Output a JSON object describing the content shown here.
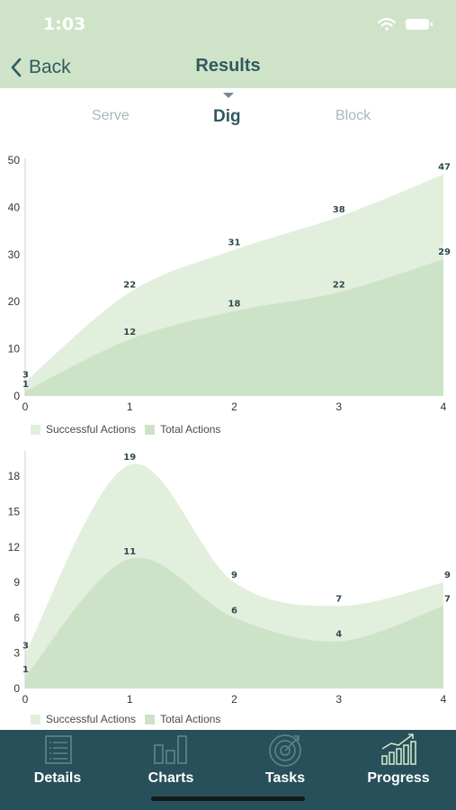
{
  "status_bar": {
    "time": "1:03"
  },
  "nav": {
    "back_label": "Back",
    "title": "Results"
  },
  "tabs": [
    {
      "label": "Serve",
      "active": false
    },
    {
      "label": "Dig",
      "active": true
    },
    {
      "label": "Block",
      "active": false
    }
  ],
  "colors": {
    "header": "#cfe3c8",
    "total_fill": "#e2efdd",
    "success_fill": "#cde3c7",
    "tabbar": "#27505a",
    "label": "#2f4a4e"
  },
  "chart_data": [
    {
      "type": "area",
      "x": [
        0,
        1,
        2,
        3,
        4
      ],
      "xlim": [
        0,
        4
      ],
      "ylim": [
        0,
        50
      ],
      "yticks": [
        0,
        10,
        20,
        30,
        40,
        50
      ],
      "series": [
        {
          "name": "Successful Actions",
          "values": [
            1,
            12,
            18,
            22,
            29
          ]
        },
        {
          "name": "Total Actions",
          "values": [
            3,
            22,
            31,
            38,
            47
          ]
        }
      ],
      "legend": [
        "Successful Actions",
        "Total Actions"
      ],
      "legend_position": "bottom-left"
    },
    {
      "type": "area",
      "x": [
        0,
        1,
        2,
        3,
        4
      ],
      "xlim": [
        0,
        4
      ],
      "ylim": [
        0,
        20
      ],
      "yticks": [
        0,
        3,
        6,
        9,
        12,
        15,
        18
      ],
      "series": [
        {
          "name": "Successful Actions",
          "values": [
            1,
            11,
            6,
            4,
            7
          ]
        },
        {
          "name": "Total Actions",
          "values": [
            3,
            19,
            9,
            7,
            9
          ]
        }
      ],
      "legend": [
        "Successful Actions",
        "Total Actions"
      ],
      "legend_position": "bottom-left"
    }
  ],
  "tabbar": [
    {
      "label": "Details",
      "icon": "list-icon"
    },
    {
      "label": "Charts",
      "icon": "bar-chart-icon"
    },
    {
      "label": "Tasks",
      "icon": "target-icon"
    },
    {
      "label": "Progress",
      "icon": "progress-chart-icon"
    }
  ]
}
